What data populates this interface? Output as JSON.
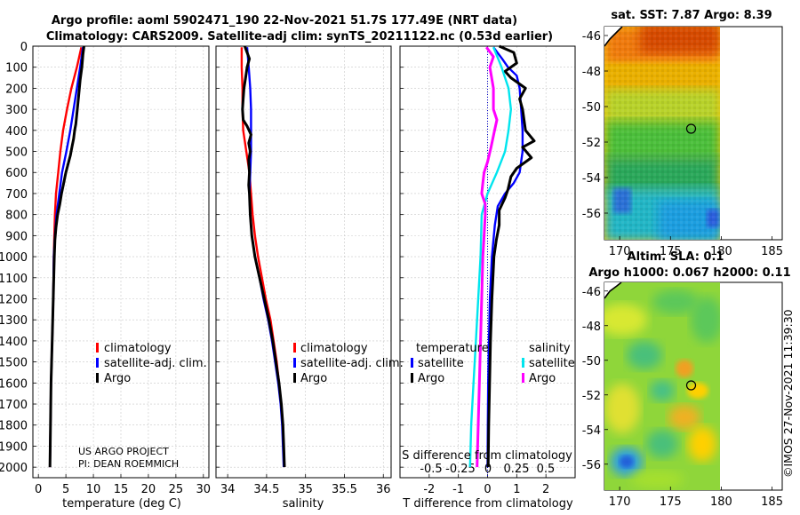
{
  "title": {
    "line1": "Argo profile: aoml 5902471_190 22-Nov-2021 51.7S 177.49E (NRT data)",
    "line2": "Climatology: CARS2009. Satellite-adj clim: synTS_20211122.nc (0.53d earlier)"
  },
  "colors": {
    "climatology": "#ff0000",
    "satellite": "#0000ff",
    "argo": "#000000",
    "sal_satellite": "#00e5ee",
    "sal_argo": "#ff00ff",
    "grid": "#c8c8c8"
  },
  "credits": {
    "project": "US ARGO PROJECT",
    "pi": "PI: DEAN ROEMMICH"
  },
  "watermark": "©IMOS 27-Nov-2021 11:39:30",
  "chart_data": [
    {
      "type": "line",
      "name": "temperature-profile",
      "xlabel": "temperature (deg C)",
      "xlim": [
        -1,
        31
      ],
      "xticks": [
        0,
        5,
        10,
        15,
        20,
        25,
        30
      ],
      "ylim": [
        0,
        2050
      ],
      "yticks": [
        0,
        100,
        200,
        300,
        400,
        500,
        600,
        700,
        800,
        900,
        1000,
        1100,
        1200,
        1300,
        1400,
        1500,
        1600,
        1700,
        1800,
        1900,
        2000
      ],
      "legend": [
        "climatology",
        "satellite-adj. clim.",
        "Argo"
      ],
      "series": [
        {
          "name": "climatology",
          "points": [
            [
              7.8,
              5
            ],
            [
              7.0,
              100
            ],
            [
              6.0,
              200
            ],
            [
              5.2,
              300
            ],
            [
              4.5,
              400
            ],
            [
              4.0,
              500
            ],
            [
              3.6,
              600
            ],
            [
              3.2,
              700
            ],
            [
              3.0,
              800
            ],
            [
              2.9,
              900
            ],
            [
              2.8,
              1000
            ],
            [
              2.7,
              1200
            ],
            [
              2.5,
              1400
            ],
            [
              2.3,
              1600
            ],
            [
              2.2,
              1800
            ],
            [
              2.1,
              2000
            ]
          ]
        },
        {
          "name": "satellite-adj. clim.",
          "points": [
            [
              8.1,
              5
            ],
            [
              7.6,
              100
            ],
            [
              7.0,
              200
            ],
            [
              6.4,
              300
            ],
            [
              5.8,
              400
            ],
            [
              5.1,
              500
            ],
            [
              4.3,
              600
            ],
            [
              3.8,
              700
            ],
            [
              3.3,
              800
            ],
            [
              3.0,
              900
            ],
            [
              2.8,
              1000
            ],
            [
              2.7,
              1200
            ],
            [
              2.5,
              1400
            ],
            [
              2.3,
              1600
            ],
            [
              2.2,
              1800
            ],
            [
              2.1,
              2000
            ]
          ]
        },
        {
          "name": "Argo",
          "points": [
            [
              8.3,
              0
            ],
            [
              8.1,
              40
            ],
            [
              7.9,
              100
            ],
            [
              7.6,
              160
            ],
            [
              7.3,
              240
            ],
            [
              7.0,
              320
            ],
            [
              6.8,
              370
            ],
            [
              6.6,
              400
            ],
            [
              6.4,
              440
            ],
            [
              6.1,
              480
            ],
            [
              5.8,
              520
            ],
            [
              5.4,
              560
            ],
            [
              5.0,
              600
            ],
            [
              4.6,
              650
            ],
            [
              4.2,
              700
            ],
            [
              3.9,
              750
            ],
            [
              3.5,
              800
            ],
            [
              3.2,
              860
            ],
            [
              3.0,
              920
            ],
            [
              2.9,
              1000
            ],
            [
              2.7,
              1200
            ],
            [
              2.5,
              1400
            ],
            [
              2.3,
              1600
            ],
            [
              2.2,
              1800
            ],
            [
              2.1,
              2000
            ]
          ]
        }
      ]
    },
    {
      "type": "line",
      "name": "salinity-profile",
      "xlabel": "salinity",
      "xlim": [
        33.85,
        36.1
      ],
      "xticks": [
        34,
        34.5,
        35,
        35.5,
        36
      ],
      "ylim": [
        0,
        2050
      ],
      "legend": [
        "climatology",
        "satellite-adj. clim.",
        "Argo"
      ],
      "series": [
        {
          "name": "climatology",
          "points": [
            [
              34.18,
              5
            ],
            [
              34.18,
              100
            ],
            [
              34.19,
              200
            ],
            [
              34.19,
              300
            ],
            [
              34.2,
              400
            ],
            [
              34.24,
              500
            ],
            [
              34.28,
              600
            ],
            [
              34.3,
              700
            ],
            [
              34.32,
              800
            ],
            [
              34.35,
              900
            ],
            [
              34.39,
              1000
            ],
            [
              34.44,
              1100
            ],
            [
              34.49,
              1200
            ],
            [
              34.55,
              1300
            ],
            [
              34.59,
              1400
            ],
            [
              34.63,
              1500
            ],
            [
              34.66,
              1600
            ],
            [
              34.69,
              1700
            ],
            [
              34.71,
              1800
            ],
            [
              34.72,
              1900
            ],
            [
              34.73,
              2000
            ]
          ]
        },
        {
          "name": "satellite-adj. clim.",
          "points": [
            [
              34.25,
              5
            ],
            [
              34.27,
              100
            ],
            [
              34.29,
              200
            ],
            [
              34.3,
              300
            ],
            [
              34.3,
              400
            ],
            [
              34.3,
              500
            ],
            [
              34.29,
              600
            ],
            [
              34.28,
              700
            ],
            [
              34.29,
              800
            ],
            [
              34.31,
              900
            ],
            [
              34.35,
              1000
            ],
            [
              34.41,
              1100
            ],
            [
              34.46,
              1200
            ],
            [
              34.52,
              1300
            ],
            [
              34.57,
              1400
            ],
            [
              34.61,
              1500
            ],
            [
              34.65,
              1600
            ],
            [
              34.68,
              1700
            ],
            [
              34.7,
              1800
            ],
            [
              34.71,
              1900
            ],
            [
              34.72,
              2000
            ]
          ]
        },
        {
          "name": "Argo",
          "points": [
            [
              34.22,
              0
            ],
            [
              34.24,
              20
            ],
            [
              34.28,
              60
            ],
            [
              34.25,
              100
            ],
            [
              34.23,
              150
            ],
            [
              34.21,
              200
            ],
            [
              34.2,
              250
            ],
            [
              34.19,
              300
            ],
            [
              34.2,
              350
            ],
            [
              34.25,
              380
            ],
            [
              34.3,
              420
            ],
            [
              34.27,
              460
            ],
            [
              34.29,
              500
            ],
            [
              34.27,
              540
            ],
            [
              34.28,
              600
            ],
            [
              34.27,
              660
            ],
            [
              34.28,
              700
            ],
            [
              34.29,
              800
            ],
            [
              34.31,
              900
            ],
            [
              34.35,
              1000
            ],
            [
              34.41,
              1100
            ],
            [
              34.47,
              1200
            ],
            [
              34.53,
              1300
            ],
            [
              34.58,
              1400
            ],
            [
              34.62,
              1500
            ],
            [
              34.66,
              1600
            ],
            [
              34.69,
              1700
            ],
            [
              34.71,
              1800
            ],
            [
              34.72,
              1900
            ],
            [
              34.73,
              2000
            ]
          ]
        }
      ]
    },
    {
      "type": "line",
      "name": "difference-profile",
      "xlabel": "T difference from climatology",
      "xlabel_top": "S difference from climatology",
      "xlim": [
        -3,
        3
      ],
      "xticks": [
        -2,
        -1,
        0,
        1,
        2
      ],
      "xticks_top": [
        "-0.5",
        "-0.25",
        "0",
        "0.25",
        "0.5"
      ],
      "ylim": [
        0,
        2050
      ],
      "legend_left_title": "temperature",
      "legend_right_title": "salinity",
      "legend_left": [
        "satellite",
        "Argo"
      ],
      "legend_right": [
        "satellite",
        "Argo"
      ],
      "series": [
        {
          "name": "T satellite",
          "points": [
            [
              0.2,
              5
            ],
            [
              0.5,
              60
            ],
            [
              0.7,
              100
            ],
            [
              1.0,
              140
            ],
            [
              1.1,
              200
            ],
            [
              1.15,
              300
            ],
            [
              1.2,
              400
            ],
            [
              1.2,
              500
            ],
            [
              1.1,
              600
            ],
            [
              0.9,
              650
            ],
            [
              0.6,
              700
            ],
            [
              0.35,
              760
            ],
            [
              0.25,
              850
            ],
            [
              0.15,
              1000
            ],
            [
              0.08,
              1200
            ],
            [
              0.05,
              1400
            ],
            [
              0.02,
              1600
            ],
            [
              0.01,
              1800
            ],
            [
              0,
              2000
            ]
          ]
        },
        {
          "name": "T Argo",
          "points": [
            [
              0.4,
              0
            ],
            [
              0.9,
              30
            ],
            [
              1.0,
              80
            ],
            [
              0.6,
              120
            ],
            [
              0.8,
              150
            ],
            [
              1.3,
              200
            ],
            [
              1.1,
              250
            ],
            [
              1.2,
              300
            ],
            [
              1.3,
              400
            ],
            [
              1.6,
              450
            ],
            [
              1.2,
              480
            ],
            [
              1.5,
              530
            ],
            [
              1.0,
              580
            ],
            [
              0.8,
              620
            ],
            [
              0.7,
              680
            ],
            [
              0.6,
              720
            ],
            [
              0.4,
              780
            ],
            [
              0.4,
              850
            ],
            [
              0.3,
              920
            ],
            [
              0.22,
              1000
            ],
            [
              0.15,
              1200
            ],
            [
              0.1,
              1400
            ],
            [
              0.07,
              1600
            ],
            [
              0.04,
              1800
            ],
            [
              0.02,
              2000
            ]
          ]
        },
        {
          "name": "S satellite",
          "points": [
            [
              0.05,
              5
            ],
            [
              0.12,
              100
            ],
            [
              0.15,
              150
            ],
            [
              0.18,
              200
            ],
            [
              0.2,
              300
            ],
            [
              0.18,
              400
            ],
            [
              0.15,
              500
            ],
            [
              0.08,
              600
            ],
            [
              0,
              700
            ],
            [
              -0.05,
              800
            ],
            [
              -0.06,
              1000
            ],
            [
              -0.08,
              1200
            ],
            [
              -0.1,
              1400
            ],
            [
              -0.12,
              1600
            ],
            [
              -0.14,
              1800
            ],
            [
              -0.15,
              2000
            ]
          ]
        },
        {
          "name": "S Argo",
          "points": [
            [
              -0.01,
              5
            ],
            [
              0.05,
              50
            ],
            [
              0.02,
              100
            ],
            [
              0.05,
              200
            ],
            [
              0.05,
              300
            ],
            [
              0.08,
              350
            ],
            [
              0.06,
              400
            ],
            [
              0.03,
              480
            ],
            [
              0,
              550
            ],
            [
              -0.03,
              600
            ],
            [
              -0.04,
              650
            ],
            [
              -0.05,
              700
            ],
            [
              -0.02,
              750
            ],
            [
              -0.02,
              800
            ],
            [
              -0.03,
              900
            ],
            [
              -0.04,
              1000
            ],
            [
              -0.05,
              1200
            ],
            [
              -0.06,
              1400
            ],
            [
              -0.07,
              1600
            ],
            [
              -0.08,
              1800
            ],
            [
              -0.09,
              2000
            ]
          ]
        }
      ]
    },
    {
      "type": "heatmap",
      "name": "sst-map",
      "title": "sat. SST: 7.87 Argo: 8.39",
      "xlim": [
        168.5,
        186
      ],
      "ylim": [
        -57.5,
        -45.5
      ],
      "xticks": [
        170,
        175,
        180,
        185
      ],
      "yticks": [
        -46,
        -48,
        -50,
        -52,
        -54,
        -56
      ],
      "marker": [
        177.49,
        -51.7
      ]
    },
    {
      "type": "heatmap",
      "name": "sla-map",
      "title_line1": "Altim. SLA: 0.1",
      "title_line2": "Argo h1000: 0.067 h2000: 0.11",
      "xlim": [
        168.5,
        186
      ],
      "ylim": [
        -57.5,
        -45.5
      ],
      "xticks": [
        170,
        175,
        180,
        185
      ],
      "yticks": [
        -46,
        -48,
        -50,
        -52,
        -54,
        -56
      ],
      "marker": [
        177.49,
        -51.7
      ]
    }
  ]
}
